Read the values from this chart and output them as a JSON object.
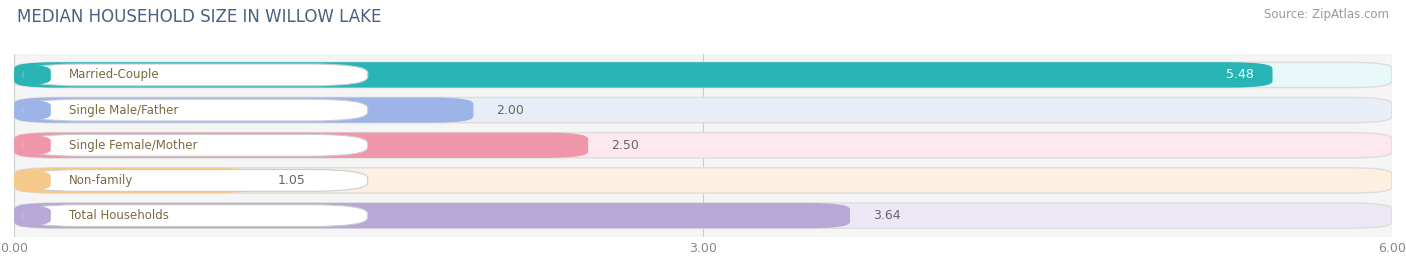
{
  "title": "MEDIAN HOUSEHOLD SIZE IN WILLOW LAKE",
  "source": "Source: ZipAtlas.com",
  "categories": [
    "Married-Couple",
    "Single Male/Father",
    "Single Female/Mother",
    "Non-family",
    "Total Households"
  ],
  "values": [
    5.48,
    2.0,
    2.5,
    1.05,
    3.64
  ],
  "bar_colors": [
    "#29b5b5",
    "#9db4e8",
    "#f096aa",
    "#f5c98a",
    "#b8a8d5"
  ],
  "bar_bg_colors": [
    "#e8f7f7",
    "#e8eef8",
    "#fce8ee",
    "#fdf0e0",
    "#ece6f5"
  ],
  "label_dot_colors": [
    "#29b5b5",
    "#9db4e8",
    "#f096aa",
    "#f5c98a",
    "#b8a8d5"
  ],
  "xlim": [
    0,
    6.0
  ],
  "xtick_labels": [
    "0.00",
    "3.00",
    "6.00"
  ],
  "xtick_vals": [
    0.0,
    3.0,
    6.0
  ],
  "value_labels": [
    "5.48",
    "2.00",
    "2.50",
    "1.05",
    "3.64"
  ],
  "bg_color": "#ffffff",
  "plot_bg_color": "#f5f5f5",
  "title_color": "#4a6080",
  "label_text_color": "#7a6a40",
  "value_text_color": "#666666"
}
